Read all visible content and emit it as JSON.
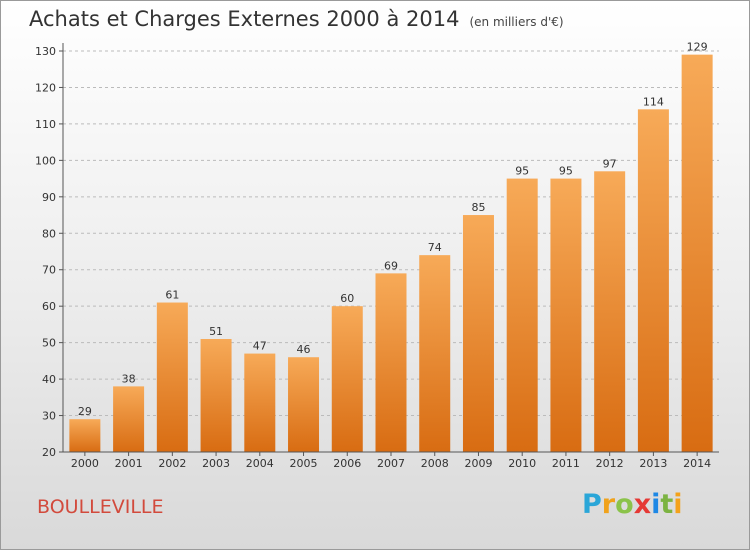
{
  "header": {
    "title": "Achats et Charges Externes 2000 à 2014",
    "unit": "(en milliers d'€)"
  },
  "footer": {
    "commune": "BOULLEVILLE",
    "logo_letters": [
      "P",
      "r",
      "o",
      "x",
      "i",
      "t",
      "i"
    ],
    "logo_colors": [
      "#2aa6d8",
      "#f0a21b",
      "#8bc34a",
      "#e53935",
      "#1e88e5",
      "#7cb342",
      "#f4a21b"
    ]
  },
  "colors": {
    "bar_top": "#f7aa58",
    "bar_bottom": "#d86c12",
    "axis": "#555555",
    "grid": "#bbbbbb"
  },
  "chart_data": {
    "type": "bar",
    "title": "Achats et Charges Externes 2000 à 2014",
    "subtitle": "(en milliers d'€)",
    "xlabel": "",
    "ylabel": "",
    "categories": [
      "2000",
      "2001",
      "2002",
      "2003",
      "2004",
      "2005",
      "2006",
      "2007",
      "2008",
      "2009",
      "2010",
      "2011",
      "2012",
      "2013",
      "2014"
    ],
    "values": [
      29,
      38,
      61,
      51,
      47,
      46,
      60,
      69,
      74,
      85,
      95,
      95,
      97,
      114,
      129
    ],
    "ylim": [
      20,
      130
    ],
    "yticks": [
      20,
      30,
      40,
      50,
      60,
      70,
      80,
      90,
      100,
      110,
      120,
      130
    ],
    "grid": true,
    "legend": "none"
  }
}
